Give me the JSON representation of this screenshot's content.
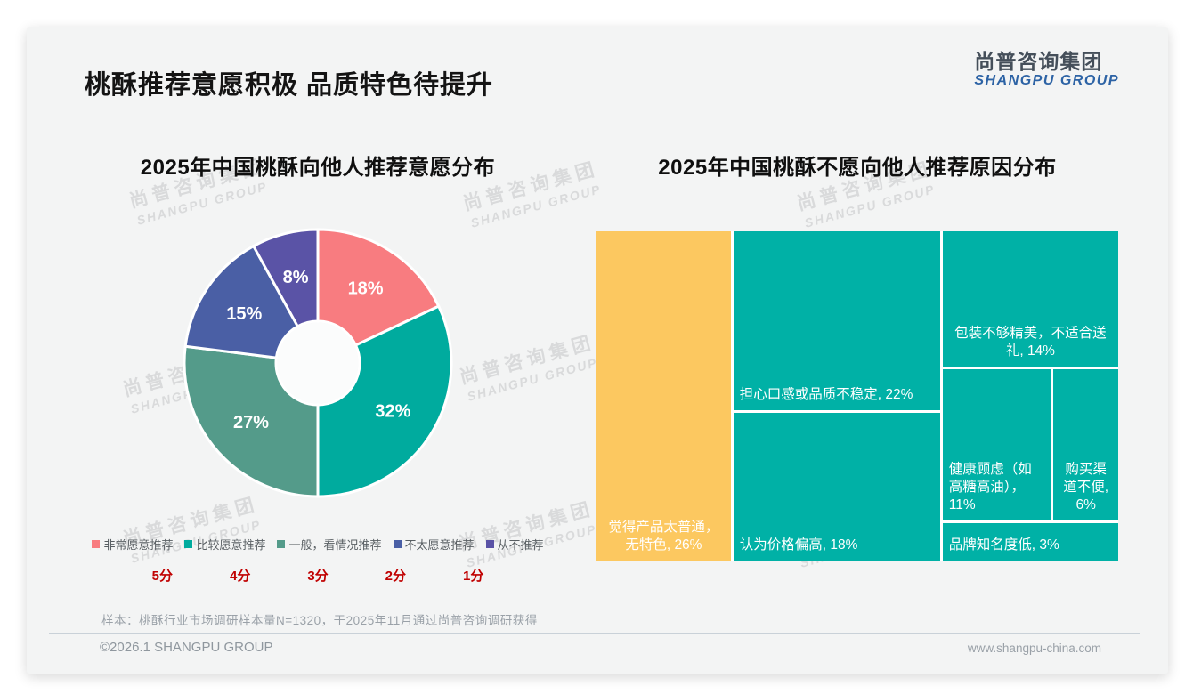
{
  "page": {
    "title": "桃酥推荐意愿积极 品质特色待提升",
    "logo": {
      "cn": "尚普咨询集团",
      "en": "SHANGPU GROUP"
    },
    "watermark": {
      "cn": "尚普咨询集团",
      "en": "SHANGPU GROUP"
    },
    "footnote": "样本：桃酥行业市场调研样本量N=1320，于2025年11月通过尚普咨询调研获得",
    "footer_left": "©2026.1 SHANGPU GROUP",
    "footer_right": "www.shangpu-china.com"
  },
  "chart_data": [
    {
      "type": "pie",
      "subtype": "donut",
      "title": "2025年中国桃酥向他人推荐意愿分布",
      "categories": [
        "非常愿意推荐",
        "比较愿意推荐",
        "一般，看情况推荐",
        "不太愿意推荐",
        "从不推荐"
      ],
      "values": [
        18,
        32,
        27,
        15,
        8
      ],
      "labels": [
        "18%",
        "32%",
        "27%",
        "15%",
        "8%"
      ],
      "colors": [
        "#f87c80",
        "#00ab9e",
        "#549b8a",
        "#4a5fa5",
        "#5a53a6"
      ],
      "scores": [
        "5分",
        "4分",
        "3分",
        "2分",
        "1分"
      ],
      "score_color": "#c00000",
      "legend_position": "bottom",
      "start_angle_deg": -90,
      "direction": "clockwise"
    },
    {
      "type": "treemap",
      "title": "2025年中国桃酥不愿向他人推荐原因分布",
      "items": [
        {
          "label": "觉得产品太普通，无特色, 26%",
          "value": 26,
          "color": "#fcc860"
        },
        {
          "label": "担心口感或品质不稳定, 22%",
          "value": 22,
          "color": "#00b1a6"
        },
        {
          "label": "认为价格偏高, 18%",
          "value": 18,
          "color": "#00b1a6"
        },
        {
          "label": "包装不够精美，不适合送礼, 14%",
          "value": 14,
          "color": "#00b1a6"
        },
        {
          "label": "健康顾虑（如高糖高油），11%",
          "value": 11,
          "color": "#00b1a6"
        },
        {
          "label": "购买渠道不便, 6%",
          "value": 6,
          "color": "#00b1a6"
        },
        {
          "label": "品牌知名度低, 3%",
          "value": 3,
          "color": "#00b1a6"
        }
      ]
    }
  ]
}
